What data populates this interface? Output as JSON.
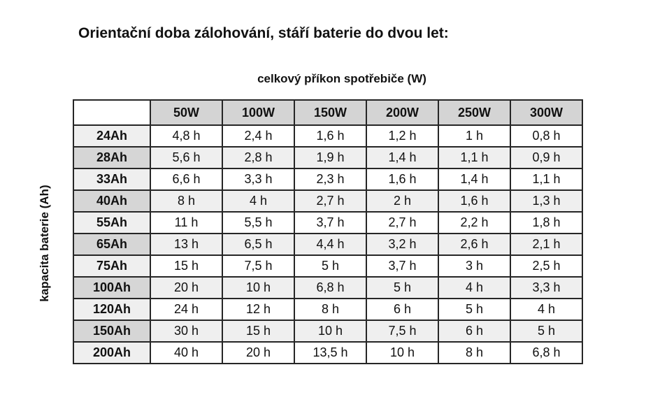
{
  "title": "Orientační doba zálohování, stáří baterie do dvou let:",
  "chart_data": {
    "type": "table",
    "title": "Orientační doba zálohování, stáří baterie do dvou let:",
    "top_axis_label": "celkový příkon spotřebiče (W)",
    "left_axis_label": "kapacita baterie (Ah)",
    "corner_label": "",
    "columns": [
      "50W",
      "100W",
      "150W",
      "200W",
      "250W",
      "300W"
    ],
    "rows": [
      {
        "label": "24Ah",
        "values": [
          "4,8 h",
          "2,4 h",
          "1,6 h",
          "1,2 h",
          "1 h",
          "0,8 h"
        ]
      },
      {
        "label": "28Ah",
        "values": [
          "5,6 h",
          "2,8 h",
          "1,9 h",
          "1,4 h",
          "1,1 h",
          "0,9 h"
        ]
      },
      {
        "label": "33Ah",
        "values": [
          "6,6 h",
          "3,3 h",
          "2,3 h",
          "1,6 h",
          "1,4 h",
          "1,1 h"
        ]
      },
      {
        "label": "40Ah",
        "values": [
          "8 h",
          "4 h",
          "2,7 h",
          "2 h",
          "1,6 h",
          "1,3 h"
        ]
      },
      {
        "label": "55Ah",
        "values": [
          "11 h",
          "5,5 h",
          "3,7 h",
          "2,7 h",
          "2,2 h",
          "1,8 h"
        ]
      },
      {
        "label": "65Ah",
        "values": [
          "13 h",
          "6,5 h",
          "4,4 h",
          "3,2 h",
          "2,6 h",
          "2,1 h"
        ]
      },
      {
        "label": "75Ah",
        "values": [
          "15 h",
          "7,5 h",
          "5 h",
          "3,7 h",
          "3 h",
          "2,5 h"
        ]
      },
      {
        "label": "100Ah",
        "values": [
          "20 h",
          "10 h",
          "6,8 h",
          "5 h",
          "4 h",
          "3,3 h"
        ]
      },
      {
        "label": "120Ah",
        "values": [
          "24 h",
          "12 h",
          "8 h",
          "6 h",
          "5 h",
          "4 h"
        ]
      },
      {
        "label": "150Ah",
        "values": [
          "30 h",
          "15 h",
          "10 h",
          "7,5 h",
          "6 h",
          "5 h"
        ]
      },
      {
        "label": "200Ah",
        "values": [
          "40 h",
          "20 h",
          "13,5 h",
          "10 h",
          "8 h",
          "6,8 h"
        ]
      }
    ],
    "layout": {
      "grid": true,
      "header_shaded": true,
      "alternating_rows": true
    }
  },
  "colors": {
    "header_bg": "#d4d4d4",
    "row_label_light": "#efefef",
    "row_label_dark": "#d6d6d6",
    "cell_light": "#ffffff",
    "cell_shaded": "#efefef",
    "border": "#262626",
    "text": "#111111"
  }
}
